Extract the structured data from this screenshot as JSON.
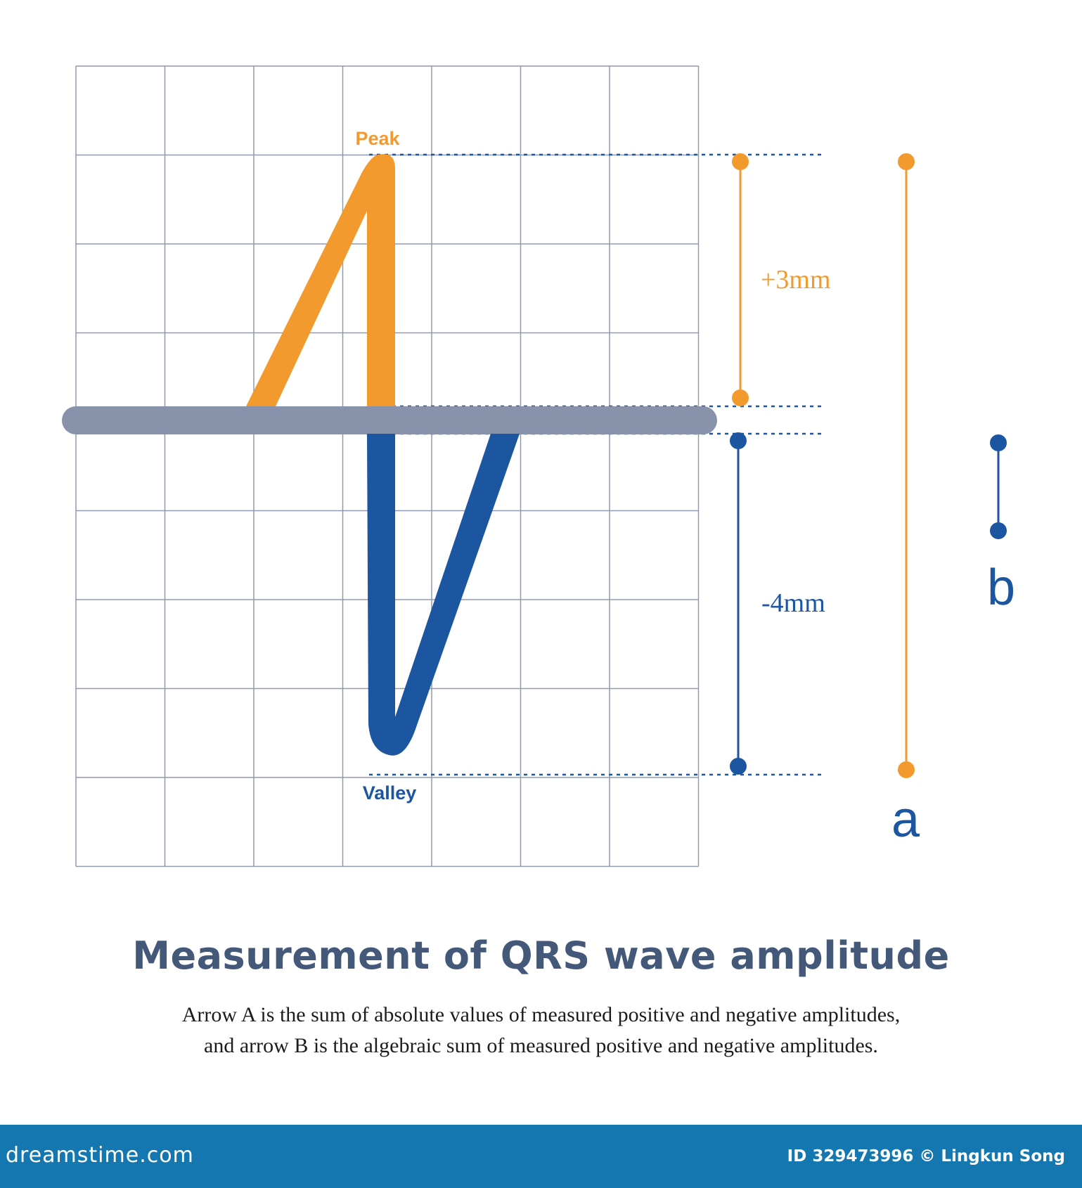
{
  "diagram": {
    "peak_label": "Peak",
    "valley_label": "Valley",
    "positive_amplitude": "+3mm",
    "negative_amplitude": "-4mm",
    "arrow_a_label": "a",
    "arrow_b_label": "b",
    "colors": {
      "positive": "#f39a2e",
      "negative": "#1c55a0",
      "baseline": "#8893ab",
      "grid": "#9099ad"
    }
  },
  "title": "Measurement of QRS wave amplitude",
  "caption": [
    "Arrow A is the sum of absolute values of measured positive and negative amplitudes,",
    "and arrow B is the algebraic sum of measured positive and negative amplitudes."
  ],
  "footer": {
    "logo": "dreamstime.com",
    "id_text": "ID 329473996",
    "credit": "© Lingkun Song"
  }
}
